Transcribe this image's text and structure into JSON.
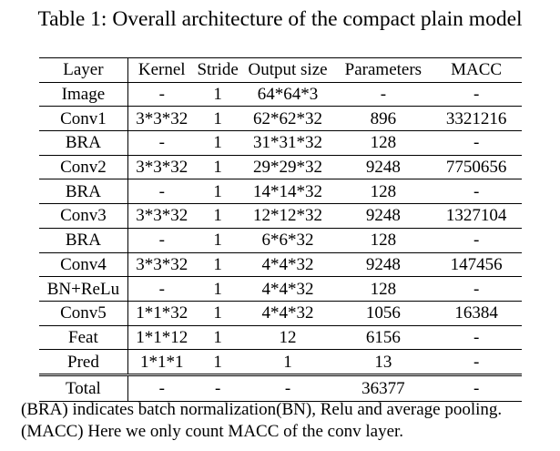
{
  "caption": "Table 1: Overall architecture of the compact plain model",
  "table": {
    "headers": [
      "Layer",
      "Kernel",
      "Stride",
      "Output size",
      "Parameters",
      "MACC"
    ],
    "rows": [
      [
        "Image",
        "-",
        "1",
        "64*64*3",
        "-",
        "-"
      ],
      [
        "Conv1",
        "3*3*32",
        "1",
        "62*62*32",
        "896",
        "3321216"
      ],
      [
        "BRA",
        "-",
        "1",
        "31*31*32",
        "128",
        "-"
      ],
      [
        "Conv2",
        "3*3*32",
        "1",
        "29*29*32",
        "9248",
        "7750656"
      ],
      [
        "BRA",
        "-",
        "1",
        "14*14*32",
        "128",
        "-"
      ],
      [
        "Conv3",
        "3*3*32",
        "1",
        "12*12*32",
        "9248",
        "1327104"
      ],
      [
        "BRA",
        "-",
        "1",
        "6*6*32",
        "128",
        "-"
      ],
      [
        "Conv4",
        "3*3*32",
        "1",
        "4*4*32",
        "9248",
        "147456"
      ],
      [
        "BN+ReLu",
        "-",
        "1",
        "4*4*32",
        "128",
        "-"
      ],
      [
        "Conv5",
        "1*1*32",
        "1",
        "4*4*32",
        "1056",
        "16384"
      ],
      [
        "Feat",
        "1*1*12",
        "1",
        "12",
        "6156",
        "-"
      ],
      [
        "Pred",
        "1*1*1",
        "1",
        "1",
        "13",
        "-"
      ]
    ],
    "total": [
      "Total",
      "-",
      "-",
      "-",
      "36377",
      "-"
    ]
  },
  "notes": [
    "(BRA) indicates batch normalization(BN), Relu and average pooling.",
    "(MACC) Here we only count MACC of the conv layer."
  ]
}
